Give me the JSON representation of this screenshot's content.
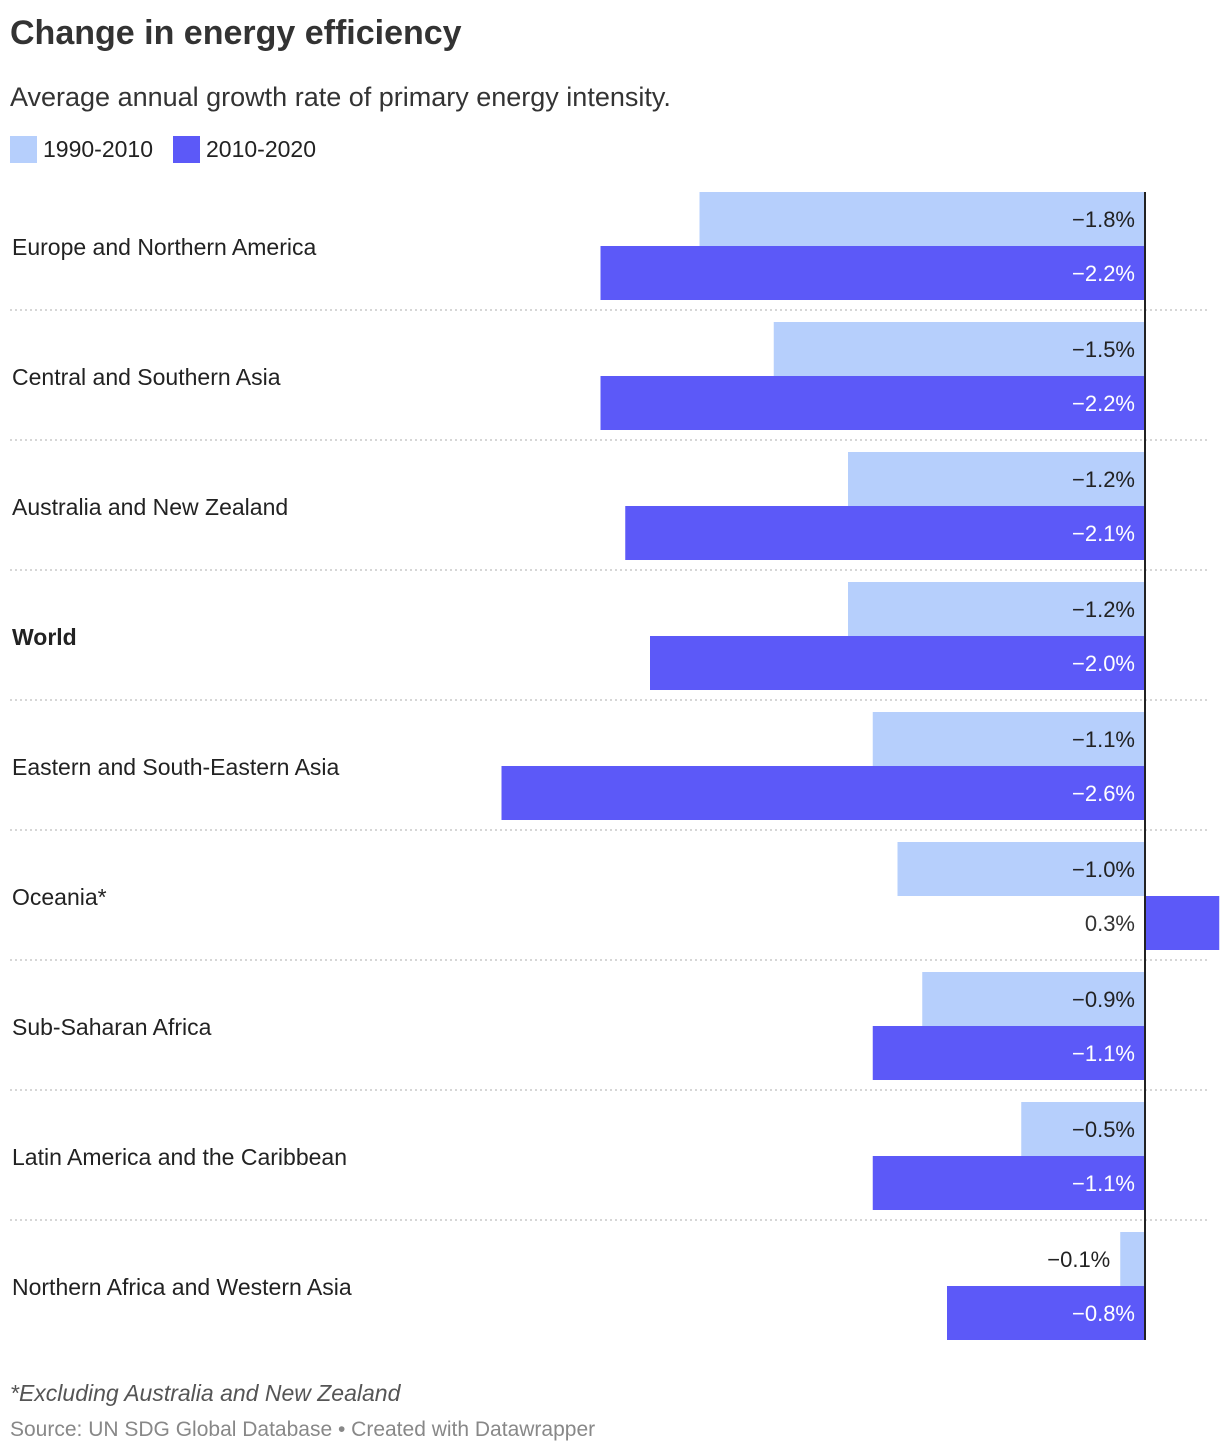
{
  "title": "Change in energy efficiency",
  "subtitle": "Average annual growth rate of primary energy intensity.",
  "colors": {
    "series1": "#b6cffc",
    "series2": "#5c59f8",
    "axis": "#222222",
    "separator": "#c8c8c8"
  },
  "legend": {
    "series1": "1990-2010",
    "series2": "2010-2020"
  },
  "chart_data": {
    "type": "bar",
    "orientation": "horizontal",
    "title": "Change in energy efficiency",
    "subtitle": "Average annual growth rate of primary energy intensity.",
    "categories": [
      "Europe and Northern America",
      "Central and Southern Asia",
      "Australia and New Zealand",
      "World",
      "Eastern and South-Eastern Asia",
      "Oceania*",
      "Sub-Saharan Africa",
      "Latin America and the Caribbean",
      "Northern Africa and Western Asia"
    ],
    "bold_categories": [
      "World"
    ],
    "series": [
      {
        "name": "1990-2010",
        "values": [
          -1.8,
          -1.5,
          -1.2,
          -1.2,
          -1.1,
          -1.0,
          -0.9,
          -0.5,
          -0.1
        ],
        "labels": [
          "−1.8%",
          "−1.5%",
          "−1.2%",
          "−1.2%",
          "−1.1%",
          "−1.0%",
          "−0.9%",
          "−0.5%",
          "−0.1%"
        ]
      },
      {
        "name": "2010-2020",
        "values": [
          -2.2,
          -2.2,
          -2.1,
          -2.0,
          -2.6,
          0.3,
          -1.1,
          -1.1,
          -0.8
        ],
        "labels": [
          "−2.2%",
          "−2.2%",
          "−2.1%",
          "−2.0%",
          "−2.6%",
          "0.3%",
          "−1.1%",
          "−1.1%",
          "−0.8%"
        ]
      }
    ],
    "xlim": [
      -2.6,
      0.25
    ],
    "grid": false,
    "legend_position": "top-left"
  },
  "footnote": "*Excluding Australia and New Zealand",
  "source": "Source: UN SDG Global Database • Created with Datawrapper"
}
